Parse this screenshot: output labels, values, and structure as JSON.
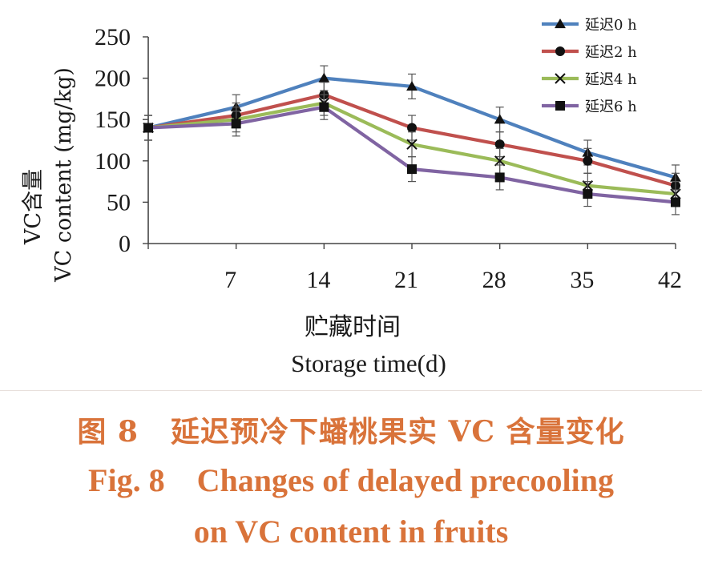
{
  "chart_data": {
    "type": "line",
    "x": [
      0,
      7,
      14,
      21,
      28,
      35,
      42
    ],
    "x_tick_labels": [
      "7",
      "14",
      "21",
      "28",
      "35",
      "42"
    ],
    "y_ticks": [
      0,
      50,
      100,
      150,
      200,
      250
    ],
    "ylim": [
      0,
      250
    ],
    "ylabel_cn": "VC含量",
    "ylabel_en": "VC content (mg/kg)",
    "xlabel_cn": "贮藏时间",
    "xlabel_en": "Storage time(d)",
    "grid": false,
    "legend_position": "top-right",
    "series": [
      {
        "name": "延迟0 h",
        "marker": "triangle",
        "color": "#4f81bd",
        "values": [
          140,
          165,
          200,
          190,
          150,
          110,
          80
        ],
        "errors": [
          15,
          15,
          15,
          15,
          15,
          15,
          15
        ]
      },
      {
        "name": "延迟2 h",
        "marker": "circle",
        "color": "#c0504d",
        "values": [
          140,
          155,
          180,
          140,
          120,
          100,
          70
        ],
        "errors": [
          15,
          15,
          15,
          15,
          15,
          15,
          15
        ]
      },
      {
        "name": "延迟4 h",
        "marker": "x",
        "color": "#9bbb59",
        "values": [
          140,
          150,
          170,
          120,
          100,
          70,
          60
        ],
        "errors": [
          15,
          15,
          15,
          15,
          15,
          15,
          15
        ]
      },
      {
        "name": "延迟6 h",
        "marker": "square",
        "color": "#8064a2",
        "values": [
          140,
          145,
          165,
          90,
          80,
          60,
          50
        ],
        "errors": [
          15,
          15,
          15,
          15,
          15,
          15,
          15
        ]
      }
    ]
  },
  "caption": {
    "cn_label": "图 8",
    "cn_title": "延迟预冷下蟠桃果实 VC 含量变化",
    "en_label": "Fig. 8",
    "en_title_line1": "Changes of delayed precooling",
    "en_title_line2": "on VC content in fruits"
  }
}
